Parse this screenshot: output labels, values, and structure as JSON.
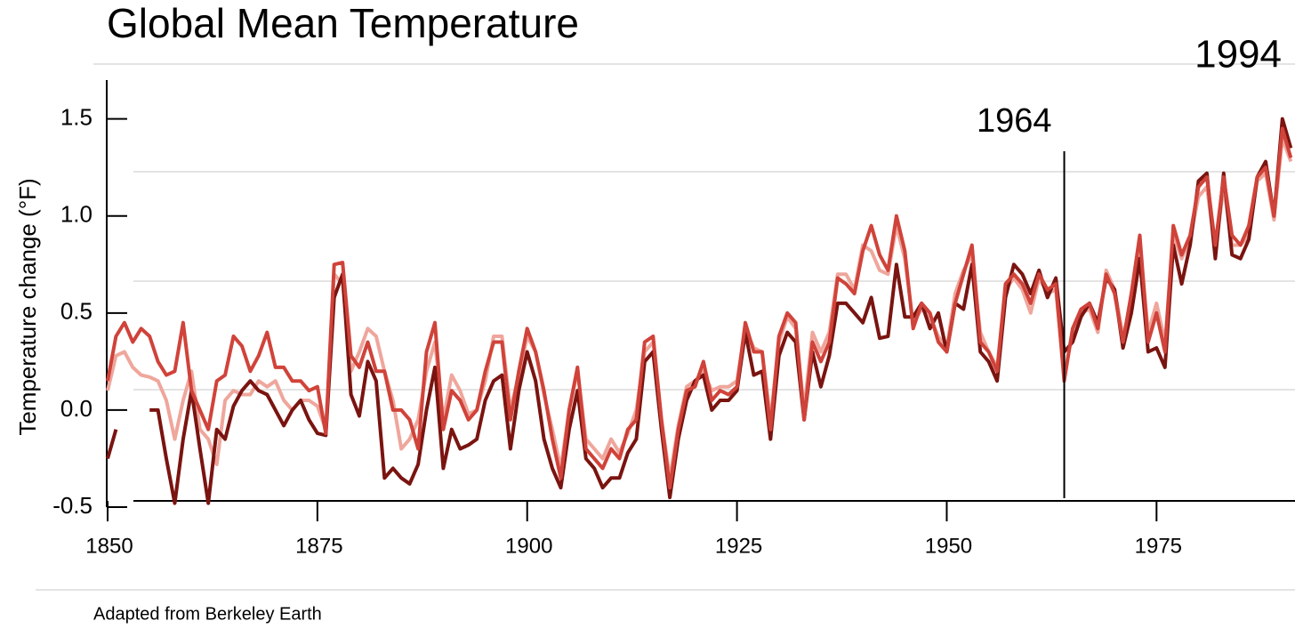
{
  "chart_data": {
    "type": "line",
    "title": "Global Mean Temperature",
    "y_label": "Temperature change (°F)",
    "source": "Adapted from Berkeley Earth",
    "annotations": [
      {
        "text": "1964",
        "x": 1964
      },
      {
        "text": "1994"
      }
    ],
    "xlim": [
      1850,
      1991.5
    ],
    "ylim": [
      -0.5,
      1.7
    ],
    "xticks": [
      1850,
      1875,
      1900,
      1925,
      1950,
      1975
    ],
    "yticks": [
      -0.5,
      {
        "value": 0,
        "label": "0.0"
      },
      0.5,
      {
        "value": 1,
        "label": "1.0"
      },
      1.5
    ],
    "x": [
      1850,
      1851,
      1852,
      1853,
      1854,
      1855,
      1856,
      1857,
      1858,
      1859,
      1860,
      1861,
      1862,
      1863,
      1864,
      1865,
      1866,
      1867,
      1868,
      1869,
      1870,
      1871,
      1872,
      1873,
      1874,
      1875,
      1876,
      1877,
      1878,
      1879,
      1880,
      1881,
      1882,
      1883,
      1884,
      1885,
      1886,
      1887,
      1888,
      1889,
      1890,
      1891,
      1892,
      1893,
      1894,
      1895,
      1896,
      1897,
      1898,
      1899,
      1900,
      1901,
      1902,
      1903,
      1904,
      1905,
      1906,
      1907,
      1908,
      1909,
      1910,
      1911,
      1912,
      1913,
      1914,
      1915,
      1916,
      1917,
      1918,
      1919,
      1920,
      1921,
      1922,
      1923,
      1924,
      1925,
      1926,
      1927,
      1928,
      1929,
      1930,
      1931,
      1932,
      1933,
      1934,
      1935,
      1936,
      1937,
      1938,
      1939,
      1940,
      1941,
      1942,
      1943,
      1944,
      1945,
      1946,
      1947,
      1948,
      1949,
      1950,
      1951,
      1952,
      1953,
      1954,
      1955,
      1956,
      1957,
      1958,
      1959,
      1960,
      1961,
      1962,
      1963,
      1964,
      1965,
      1966,
      1967,
      1968,
      1969,
      1970,
      1971,
      1972,
      1973,
      1974,
      1975,
      1976,
      1977,
      1978,
      1979,
      1980,
      1981,
      1982,
      1983,
      1984,
      1985,
      1986,
      1987,
      1988,
      1989,
      1990,
      1991
    ],
    "series": [
      {
        "color": "#efa69c",
        "values": [
          0.1,
          0.28,
          0.3,
          0.22,
          0.18,
          0.17,
          0.15,
          0.05,
          -0.15,
          0.05,
          0.2,
          -0.1,
          -0.15,
          -0.28,
          0.05,
          0.1,
          0.08,
          0.08,
          0.15,
          0.12,
          0.15,
          0.05,
          0.0,
          0.05,
          0.05,
          0.02,
          -0.1,
          0.7,
          0.65,
          0.2,
          0.3,
          0.42,
          0.38,
          0.2,
          0.05,
          -0.2,
          -0.15,
          -0.05,
          0.2,
          0.35,
          -0.05,
          0.18,
          0.1,
          -0.02,
          0.0,
          0.15,
          0.38,
          0.38,
          0.0,
          0.18,
          0.38,
          0.3,
          0.08,
          -0.1,
          -0.3,
          0.0,
          0.2,
          -0.15,
          -0.2,
          -0.25,
          -0.15,
          -0.22,
          -0.12,
          0.0,
          0.3,
          0.35,
          -0.05,
          -0.35,
          -0.08,
          0.12,
          0.15,
          0.2,
          0.1,
          0.12,
          0.12,
          0.15,
          0.42,
          0.32,
          0.3,
          -0.05,
          0.35,
          0.48,
          0.42,
          0.0,
          0.4,
          0.3,
          0.4,
          0.7,
          0.7,
          0.62,
          0.85,
          0.82,
          0.72,
          0.7,
          0.95,
          0.78,
          0.45,
          0.52,
          0.48,
          0.38,
          0.32,
          0.6,
          0.72,
          0.8,
          0.4,
          0.3,
          0.22,
          0.62,
          0.68,
          0.62,
          0.5,
          0.68,
          0.6,
          0.62,
          0.18,
          0.4,
          0.5,
          0.52,
          0.4,
          0.72,
          0.62,
          0.38,
          0.55,
          0.85,
          0.4,
          0.55,
          0.35,
          0.9,
          0.78,
          0.88,
          1.1,
          1.15,
          0.82,
          1.15,
          0.85,
          0.85,
          0.9,
          1.18,
          1.22,
          0.98,
          1.4,
          1.28
        ]
      },
      {
        "color": "#7a1410",
        "values": [
          -0.25,
          -0.1,
          null,
          null,
          null,
          0.0,
          0.0,
          -0.25,
          -0.48,
          -0.15,
          0.1,
          -0.2,
          -0.48,
          -0.1,
          -0.15,
          0.02,
          0.1,
          0.15,
          0.1,
          0.08,
          0.0,
          -0.08,
          0.0,
          0.05,
          -0.05,
          -0.12,
          -0.13,
          0.58,
          0.7,
          0.08,
          -0.03,
          0.25,
          0.15,
          -0.35,
          -0.3,
          -0.35,
          -0.38,
          -0.28,
          0.0,
          0.22,
          -0.3,
          -0.1,
          -0.2,
          -0.18,
          -0.15,
          0.05,
          0.15,
          0.18,
          -0.2,
          0.1,
          0.3,
          0.15,
          -0.15,
          -0.3,
          -0.4,
          -0.1,
          0.1,
          -0.25,
          -0.3,
          -0.4,
          -0.35,
          -0.35,
          -0.22,
          -0.15,
          0.25,
          0.3,
          -0.1,
          -0.45,
          -0.15,
          0.05,
          0.15,
          0.18,
          0.0,
          0.05,
          0.05,
          0.1,
          0.4,
          0.18,
          0.2,
          -0.15,
          0.28,
          0.4,
          0.35,
          -0.05,
          0.3,
          0.12,
          0.28,
          0.55,
          0.55,
          0.5,
          0.45,
          0.58,
          0.37,
          0.38,
          0.75,
          0.48,
          0.48,
          0.55,
          0.42,
          0.5,
          0.3,
          0.55,
          0.52,
          0.75,
          0.3,
          0.25,
          0.15,
          0.58,
          0.75,
          0.7,
          0.6,
          0.72,
          0.58,
          0.68,
          0.3,
          0.35,
          0.48,
          0.55,
          0.45,
          0.68,
          0.62,
          0.32,
          0.5,
          0.78,
          0.3,
          0.32,
          0.22,
          0.85,
          0.65,
          0.85,
          1.18,
          1.22,
          0.78,
          1.22,
          0.8,
          0.78,
          0.88,
          1.2,
          1.28,
          1.0,
          1.5,
          1.35
        ]
      },
      {
        "color": "#d0433a",
        "values": [
          0.15,
          0.38,
          0.45,
          0.35,
          0.42,
          0.38,
          0.25,
          0.18,
          0.2,
          0.45,
          0.1,
          0.0,
          -0.1,
          0.15,
          0.18,
          0.38,
          0.33,
          0.2,
          0.28,
          0.4,
          0.22,
          0.22,
          0.15,
          0.15,
          0.1,
          0.12,
          -0.12,
          0.75,
          0.76,
          0.28,
          0.22,
          0.35,
          0.2,
          0.2,
          0.0,
          0.0,
          -0.05,
          -0.2,
          0.3,
          0.45,
          -0.1,
          0.1,
          0.05,
          -0.05,
          0.0,
          0.2,
          0.35,
          0.35,
          -0.05,
          0.2,
          0.42,
          0.3,
          0.1,
          -0.15,
          -0.35,
          0.0,
          0.22,
          -0.2,
          -0.25,
          -0.3,
          -0.2,
          -0.25,
          -0.1,
          -0.05,
          0.35,
          0.38,
          -0.05,
          -0.4,
          -0.1,
          0.1,
          0.12,
          0.25,
          0.05,
          0.1,
          0.08,
          0.12,
          0.45,
          0.3,
          0.3,
          -0.1,
          0.38,
          0.5,
          0.45,
          -0.05,
          0.35,
          0.25,
          0.35,
          0.68,
          0.65,
          0.6,
          0.82,
          0.95,
          0.8,
          0.72,
          1.0,
          0.82,
          0.42,
          0.55,
          0.5,
          0.35,
          0.3,
          0.55,
          0.7,
          0.85,
          0.35,
          0.3,
          0.2,
          0.65,
          0.7,
          0.65,
          0.55,
          0.7,
          0.62,
          0.65,
          0.15,
          0.42,
          0.52,
          0.55,
          0.42,
          0.7,
          0.6,
          0.35,
          0.6,
          0.9,
          0.35,
          0.5,
          0.3,
          0.95,
          0.8,
          0.9,
          1.15,
          1.2,
          0.85,
          1.2,
          0.9,
          0.85,
          0.95,
          1.2,
          1.25,
          1.0,
          1.45,
          1.3
        ]
      }
    ]
  }
}
